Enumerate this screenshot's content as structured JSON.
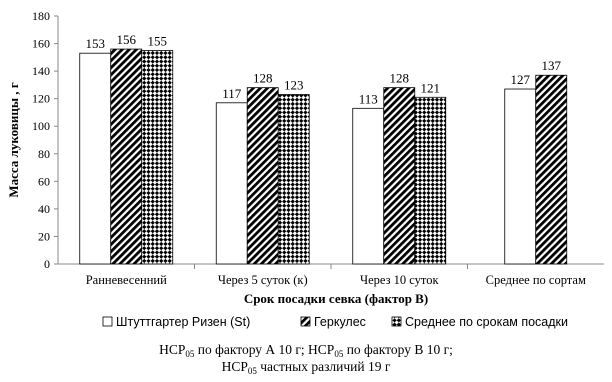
{
  "chart_data": {
    "type": "bar",
    "title": "",
    "xlabel": "Срок посадки севка (фактор В)",
    "ylabel": "Масса луковицы , г",
    "ylim": [
      0,
      180
    ],
    "yticks": [
      0,
      20,
      40,
      60,
      80,
      100,
      120,
      140,
      160,
      180
    ],
    "categories": [
      "Ранневесенний",
      "Через 5 суток (к)",
      "Через 10 суток",
      "Среднее по сортам"
    ],
    "series": [
      {
        "name": "Штуттгартер Ризен (St)",
        "values": [
          153,
          117,
          113,
          127
        ],
        "pattern": "white"
      },
      {
        "name": "Геркулес",
        "values": [
          156,
          128,
          128,
          137
        ],
        "pattern": "diagonal-black"
      },
      {
        "name": "Среднее по срокам посадки",
        "values": [
          155,
          123,
          121,
          null
        ],
        "pattern": "checker"
      }
    ],
    "legend_position": "bottom",
    "grid": false
  },
  "notes": {
    "line1": [
      {
        "t": "НСР"
      },
      {
        "sub": "05"
      },
      {
        "t": " по фактору А 10 г; НСР"
      },
      {
        "sub": "05"
      },
      {
        "t": " по фактору В 10 г;"
      }
    ],
    "line2": [
      {
        "t": "НСР"
      },
      {
        "sub": "05"
      },
      {
        "t": " частных различий 19 г"
      }
    ]
  }
}
